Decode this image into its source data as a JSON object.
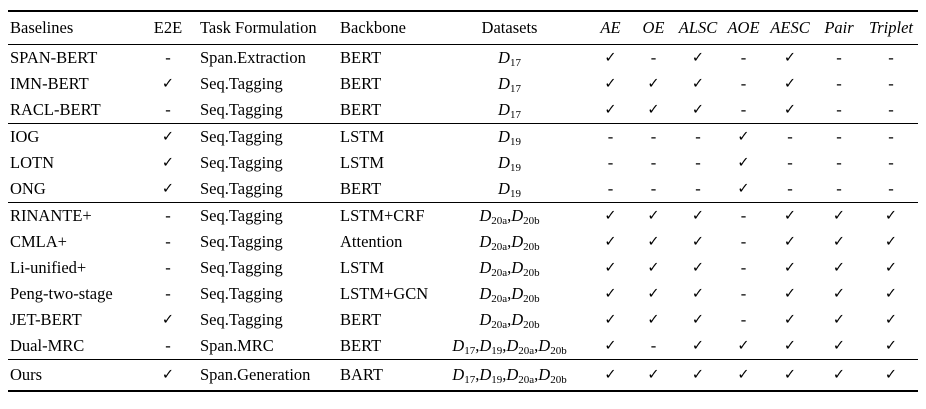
{
  "glyphs": {
    "check": "✓",
    "dash": "-",
    "dataset_symbol": "D"
  },
  "header": {
    "baselines": "Baselines",
    "e2e": "E2E",
    "task_formulation": "Task Formulation",
    "backbone": "Backbone",
    "datasets": "Datasets",
    "tasks": [
      "AE",
      "OE",
      "ALSC",
      "AOE",
      "AESC",
      "Pair",
      "Triplet"
    ]
  },
  "rows": [
    {
      "name": "SPAN-BERT",
      "e2e": "-",
      "task": "Span.Extraction",
      "backbone": "BERT",
      "datasets": [
        "17"
      ],
      "marks": [
        "✓",
        "-",
        "✓",
        "-",
        "✓",
        "-",
        "-"
      ]
    },
    {
      "name": "IMN-BERT",
      "e2e": "✓",
      "task": "Seq.Tagging",
      "backbone": "BERT",
      "datasets": [
        "17"
      ],
      "marks": [
        "✓",
        "✓",
        "✓",
        "-",
        "✓",
        "-",
        "-"
      ]
    },
    {
      "name": "RACL-BERT",
      "e2e": "-",
      "task": "Seq.Tagging",
      "backbone": "BERT",
      "datasets": [
        "17"
      ],
      "marks": [
        "✓",
        "✓",
        "✓",
        "-",
        "✓",
        "-",
        "-"
      ]
    },
    {
      "name": "IOG",
      "e2e": "✓",
      "task": "Seq.Tagging",
      "backbone": "LSTM",
      "datasets": [
        "19"
      ],
      "marks": [
        "-",
        "-",
        "-",
        "✓",
        "-",
        "-",
        "-"
      ]
    },
    {
      "name": "LOTN",
      "e2e": "✓",
      "task": "Seq.Tagging",
      "backbone": "LSTM",
      "datasets": [
        "19"
      ],
      "marks": [
        "-",
        "-",
        "-",
        "✓",
        "-",
        "-",
        "-"
      ]
    },
    {
      "name": "ONG",
      "e2e": "✓",
      "task": "Seq.Tagging",
      "backbone": "BERT",
      "datasets": [
        "19"
      ],
      "marks": [
        "-",
        "-",
        "-",
        "✓",
        "-",
        "-",
        "-"
      ]
    },
    {
      "name": "RINANTE+",
      "e2e": "-",
      "task": "Seq.Tagging",
      "backbone": "LSTM+CRF",
      "datasets": [
        "20a",
        "20b"
      ],
      "marks": [
        "✓",
        "✓",
        "✓",
        "-",
        "✓",
        "✓",
        "✓"
      ]
    },
    {
      "name": "CMLA+",
      "e2e": "-",
      "task": "Seq.Tagging",
      "backbone": "Attention",
      "datasets": [
        "20a",
        "20b"
      ],
      "marks": [
        "✓",
        "✓",
        "✓",
        "-",
        "✓",
        "✓",
        "✓"
      ]
    },
    {
      "name": "Li-unified+",
      "e2e": "-",
      "task": "Seq.Tagging",
      "backbone": "LSTM",
      "datasets": [
        "20a",
        "20b"
      ],
      "marks": [
        "✓",
        "✓",
        "✓",
        "-",
        "✓",
        "✓",
        "✓"
      ]
    },
    {
      "name": "Peng-two-stage",
      "e2e": "-",
      "task": "Seq.Tagging",
      "backbone": "LSTM+GCN",
      "datasets": [
        "20a",
        "20b"
      ],
      "marks": [
        "✓",
        "✓",
        "✓",
        "-",
        "✓",
        "✓",
        "✓"
      ]
    },
    {
      "name": "JET-BERT",
      "e2e": "✓",
      "task": "Seq.Tagging",
      "backbone": "BERT",
      "datasets": [
        "20a",
        "20b"
      ],
      "marks": [
        "✓",
        "✓",
        "✓",
        "-",
        "✓",
        "✓",
        "✓"
      ]
    },
    {
      "name": "Dual-MRC",
      "e2e": "-",
      "task": "Span.MRC",
      "backbone": "BERT",
      "datasets": [
        "17",
        "19",
        "20a",
        "20b"
      ],
      "marks": [
        "✓",
        "-",
        "✓",
        "✓",
        "✓",
        "✓",
        "✓"
      ]
    },
    {
      "name": "Ours",
      "e2e": "✓",
      "task": "Span.Generation",
      "backbone": "BART",
      "datasets": [
        "17",
        "19",
        "20a",
        "20b"
      ],
      "marks": [
        "✓",
        "✓",
        "✓",
        "✓",
        "✓",
        "✓",
        "✓"
      ]
    }
  ]
}
